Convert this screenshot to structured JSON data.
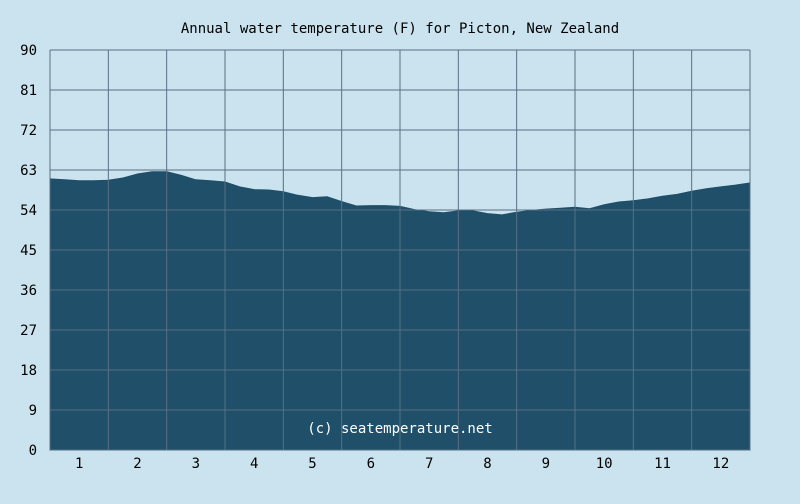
{
  "colors": {
    "background": "#cae3ef",
    "area_fill": "#1f4f69",
    "grid": "#5a6f86",
    "text": "#000000",
    "watermark": "#ffffff"
  },
  "watermark": "(c) seatemperature.net",
  "chart_data": {
    "type": "area",
    "title": "Annual water temperature (F) for Picton, New Zealand",
    "xlabel": "",
    "ylabel": "",
    "ylim": [
      0,
      90
    ],
    "y_ticks": [
      "0",
      "9",
      "18",
      "27",
      "36",
      "45",
      "54",
      "63",
      "72",
      "81",
      "90"
    ],
    "x_ticks": [
      "1",
      "2",
      "3",
      "4",
      "5",
      "6",
      "7",
      "8",
      "9",
      "10",
      "11",
      "12"
    ],
    "xlim": [
      0.5,
      12.5
    ],
    "grid": true,
    "legend": "none",
    "series": [
      {
        "x": [
          0.5,
          0.75,
          1.0,
          1.25,
          1.5,
          1.75,
          2.0,
          2.25,
          2.5,
          2.75,
          3.0,
          3.25,
          3.5,
          3.75,
          4.0,
          4.25,
          4.5,
          4.75,
          5.0,
          5.25,
          5.5,
          5.75,
          6.0,
          6.25,
          6.5,
          6.75,
          7.0,
          7.25,
          7.5,
          7.75,
          8.0,
          8.25,
          8.5,
          8.75,
          9.0,
          9.25,
          9.5,
          9.75,
          10.0,
          10.25,
          10.5,
          10.75,
          11.0,
          11.25,
          11.5,
          11.75,
          12.0,
          12.25,
          12.5
        ],
        "values": [
          61.0,
          60.8,
          60.6,
          60.6,
          60.7,
          61.2,
          62.1,
          62.6,
          62.6,
          61.8,
          60.8,
          60.6,
          60.3,
          59.2,
          58.6,
          58.5,
          58.1,
          57.3,
          56.8,
          57.0,
          55.9,
          54.9,
          55.0,
          55.0,
          54.8,
          54.1,
          53.6,
          53.4,
          53.8,
          53.8,
          53.2,
          52.9,
          53.5,
          53.9,
          54.2,
          54.4,
          54.6,
          54.3,
          55.2,
          55.8,
          56.1,
          56.5,
          57.1,
          57.5,
          58.2,
          58.8,
          59.2,
          59.6,
          60.1
        ]
      }
    ]
  }
}
